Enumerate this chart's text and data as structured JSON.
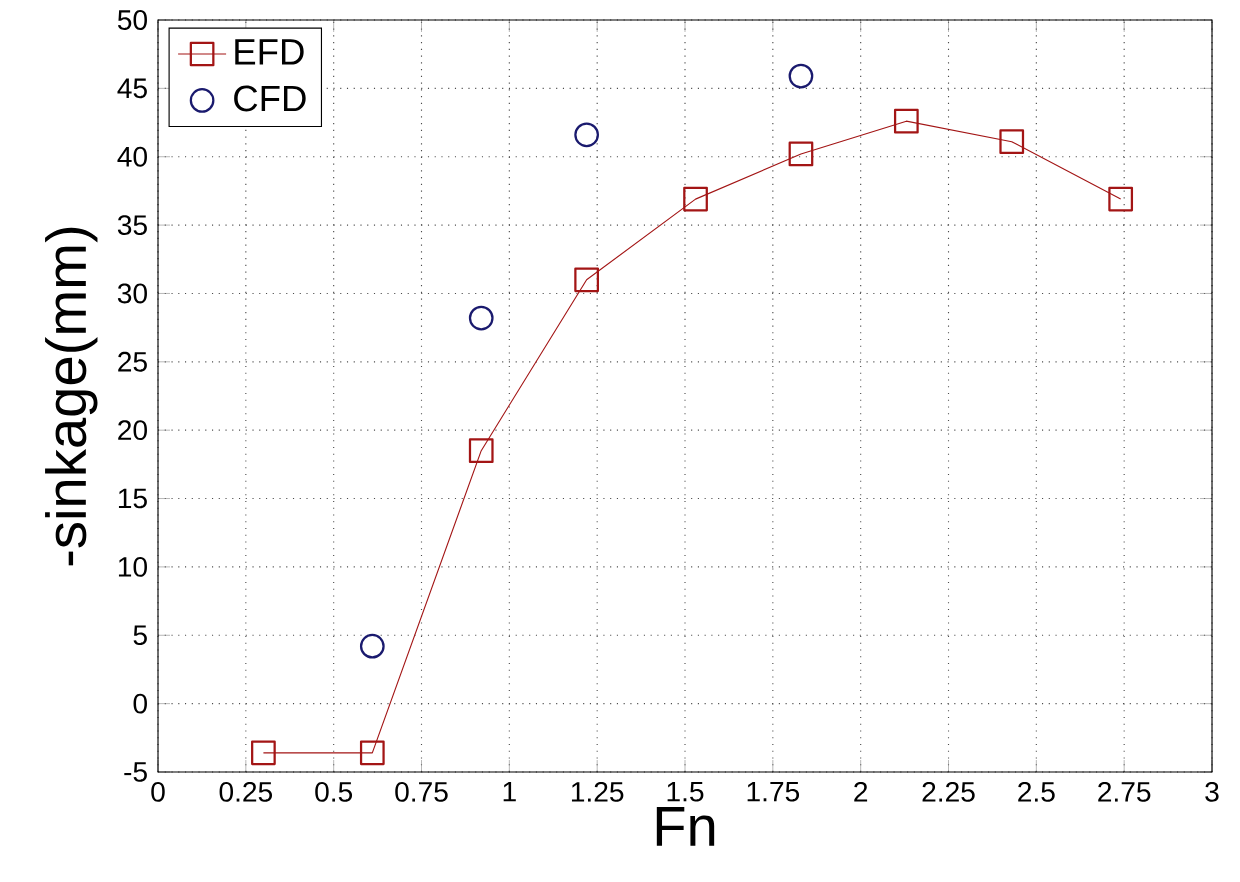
{
  "chart_data": {
    "type": "line",
    "xlabel": "Fn",
    "ylabel": "-sinkage(mm)",
    "xlim": [
      0,
      3
    ],
    "ylim": [
      -5,
      50
    ],
    "xticks": [
      0,
      {
        "value": 0.25,
        "label": "0.25"
      },
      {
        "value": 0.5,
        "label": "0.5"
      },
      {
        "value": 0.75,
        "label": "0.75"
      },
      1,
      {
        "value": 1.25,
        "label": "1.25"
      },
      {
        "value": 1.5,
        "label": "1.5"
      },
      {
        "value": 1.75,
        "label": "1.75"
      },
      2,
      {
        "value": 2.25,
        "label": "2.25"
      },
      {
        "value": 2.5,
        "label": "2.5"
      },
      {
        "value": 2.75,
        "label": "2.75"
      },
      3
    ],
    "yticks": [
      -5,
      0,
      5,
      10,
      15,
      20,
      25,
      30,
      35,
      40,
      45,
      50
    ],
    "grid": true,
    "legend": "top left",
    "series": [
      {
        "name": "EFD",
        "color": "#a31515",
        "marker": "square",
        "line_style": "solid",
        "x": [
          0.3,
          0.61,
          0.92,
          1.22,
          1.53,
          1.83,
          2.13,
          2.43,
          2.74
        ],
        "values": [
          -3.6,
          -3.6,
          18.5,
          31,
          36.9,
          40.2,
          42.6,
          41.1,
          36.9
        ]
      },
      {
        "name": "CFD",
        "type": "scatter",
        "color": "#1a1a6e",
        "marker": "circle",
        "x": [
          0.61,
          0.92,
          1.22,
          1.83
        ],
        "values": [
          4.2,
          28.2,
          41.6,
          45.9
        ]
      }
    ]
  }
}
